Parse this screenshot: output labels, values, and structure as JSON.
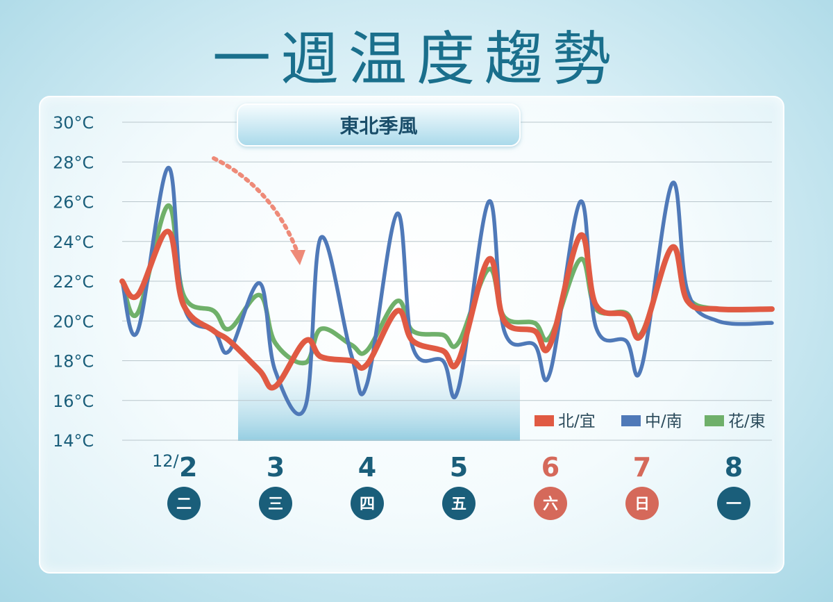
{
  "title": "一週温度趨勢",
  "colors": {
    "north": "#e05a43",
    "central": "#4f79b8",
    "east": "#6fb06a",
    "weekday": "#1a5e7a",
    "weekend": "#d5695a",
    "monsoon_band": "#8fcbe0",
    "arrow": "#ee8a78"
  },
  "annotation": {
    "label": "東北季風"
  },
  "chart_data": {
    "type": "line",
    "ylim": [
      14,
      30
    ],
    "yticks": [
      "30°C",
      "28°C",
      "26°C",
      "24°C",
      "22°C",
      "20°C",
      "18°C",
      "16°C",
      "14°C"
    ],
    "grid": true,
    "legend_position": "bottom-right",
    "days": [
      {
        "date": "12/2",
        "month": "12/",
        "day": "2",
        "weekday": "二",
        "weekend": false
      },
      {
        "date": "12/3",
        "month": "",
        "day": "3",
        "weekday": "三",
        "weekend": false
      },
      {
        "date": "12/4",
        "month": "",
        "day": "4",
        "weekday": "四",
        "weekend": false
      },
      {
        "date": "12/5",
        "month": "",
        "day": "5",
        "weekday": "五",
        "weekend": false
      },
      {
        "date": "12/6",
        "month": "",
        "day": "6",
        "weekday": "六",
        "weekend": true
      },
      {
        "date": "12/7",
        "month": "",
        "day": "7",
        "weekday": "日",
        "weekend": true
      },
      {
        "date": "12/8",
        "month": "",
        "day": "8",
        "weekday": "一",
        "weekend": false
      }
    ],
    "x": [
      0,
      0.17,
      0.5,
      0.67,
      1.0,
      1.17,
      1.5,
      1.67,
      2.0,
      2.17,
      2.5,
      2.67,
      3.0,
      3.17,
      3.5,
      3.67,
      4.0,
      4.17,
      4.5,
      4.67,
      5.0,
      5.17,
      5.5,
      5.67,
      6.0,
      6.17,
      6.5,
      6.67
    ],
    "series": [
      {
        "name": "北/宜",
        "key": "north",
        "values": [
          22.0,
          21.3,
          24.5,
          20.8,
          19.5,
          19.0,
          17.5,
          16.7,
          19.0,
          18.2,
          18.0,
          17.8,
          20.5,
          19.0,
          18.5,
          18.0,
          23.1,
          20.0,
          19.5,
          18.8,
          24.3,
          20.8,
          20.3,
          19.3,
          23.7,
          21.0,
          20.6,
          20.6
        ]
      },
      {
        "name": "中/南",
        "key": "central",
        "values": [
          22.0,
          19.5,
          27.7,
          20.8,
          19.5,
          18.5,
          21.9,
          17.5,
          15.7,
          24.2,
          18.3,
          16.8,
          25.4,
          18.7,
          18.0,
          16.6,
          26.0,
          19.5,
          18.8,
          17.4,
          26.0,
          19.7,
          19.0,
          17.7,
          26.9,
          21.5,
          20.0,
          19.9
        ]
      },
      {
        "name": "花/東",
        "key": "east",
        "values": [
          22.0,
          20.4,
          25.8,
          21.3,
          20.5,
          19.6,
          21.3,
          18.9,
          17.9,
          19.6,
          18.8,
          18.5,
          21.0,
          19.5,
          19.3,
          18.9,
          22.6,
          20.2,
          19.9,
          19.2,
          23.1,
          20.6,
          20.4,
          19.4,
          23.7,
          21.2,
          20.6,
          20.6
        ]
      }
    ]
  }
}
